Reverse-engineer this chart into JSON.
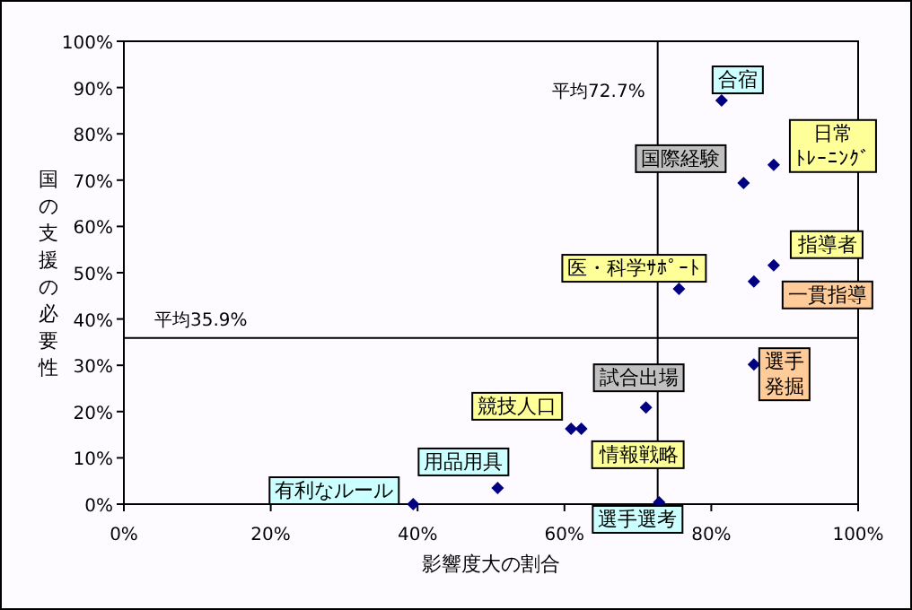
{
  "chart_data": {
    "type": "scatter",
    "xlabel": "影響度大の割合",
    "ylabel": "国の支援の必要性",
    "x": [
      81.4,
      88.5,
      84.4,
      88.5,
      85.8,
      75.6,
      85.8,
      71.1,
      60.9,
      62.3,
      50.9,
      39.4,
      72.9
    ],
    "series": [
      {
        "color": "#000080",
        "values": [
          87.2,
          73.3,
          69.4,
          51.6,
          48.1,
          46.5,
          30.2,
          20.9,
          16.3,
          16.3,
          3.5,
          0,
          0.4
        ]
      }
    ],
    "marker": "diamond",
    "grid": false,
    "xlim": [
      0,
      100
    ],
    "ylim": [
      0,
      100
    ],
    "xticks": [
      {
        "value": 0,
        "label": "0%"
      },
      {
        "value": 20,
        "label": "20%"
      },
      {
        "value": 40,
        "label": "40%"
      },
      {
        "value": 60,
        "label": "60%"
      },
      {
        "value": 80,
        "label": "80%"
      },
      {
        "value": 100,
        "label": "100%"
      }
    ],
    "yticks": [
      {
        "value": 0,
        "label": "0%"
      },
      {
        "value": 10,
        "label": "10%"
      },
      {
        "value": 20,
        "label": "20%"
      },
      {
        "value": 30,
        "label": "30%"
      },
      {
        "value": 40,
        "label": "40%"
      },
      {
        "value": 50,
        "label": "50%"
      },
      {
        "value": 60,
        "label": "60%"
      },
      {
        "value": 70,
        "label": "70%"
      },
      {
        "value": 80,
        "label": "80%"
      },
      {
        "value": 90,
        "label": "90%"
      },
      {
        "value": 100,
        "label": "100%"
      }
    ],
    "ref_lines": [
      {
        "axis": "x",
        "value": 72.7,
        "label": "平均72.7%",
        "color": "#000000"
      },
      {
        "axis": "y",
        "value": 35.9,
        "label": "平均35.9%",
        "color": "#000000"
      }
    ],
    "annotations": [
      {
        "text": "合宿",
        "x": 81.4,
        "y": 87.2
      },
      {
        "text": "日常ﾄﾚｰﾆﾝｸﾞ",
        "x": 88.5,
        "y": 73.3
      },
      {
        "text": "国際経験",
        "x": 84.4,
        "y": 69.4
      },
      {
        "text": "指導者",
        "x": 88.5,
        "y": 51.6
      },
      {
        "text": "一貫指導",
        "x": 85.8,
        "y": 48.1
      },
      {
        "text": "医・科学ｻﾎﾟｰﾄ",
        "x": 75.6,
        "y": 46.5
      },
      {
        "text": "選手発掘",
        "x": 85.8,
        "y": 30.2
      },
      {
        "text": "試合出場",
        "x": 71.1,
        "y": 20.9
      },
      {
        "text": "競技人口",
        "x": 60.9,
        "y": 16.3
      },
      {
        "text": "情報戦略",
        "x": 62.3,
        "y": 16.3
      },
      {
        "text": "用品用具",
        "x": 50.9,
        "y": 3.5
      },
      {
        "text": "有利なルール",
        "x": 39.4,
        "y": 0
      },
      {
        "text": "選手選考",
        "x": 72.9,
        "y": 0.4
      }
    ]
  }
}
